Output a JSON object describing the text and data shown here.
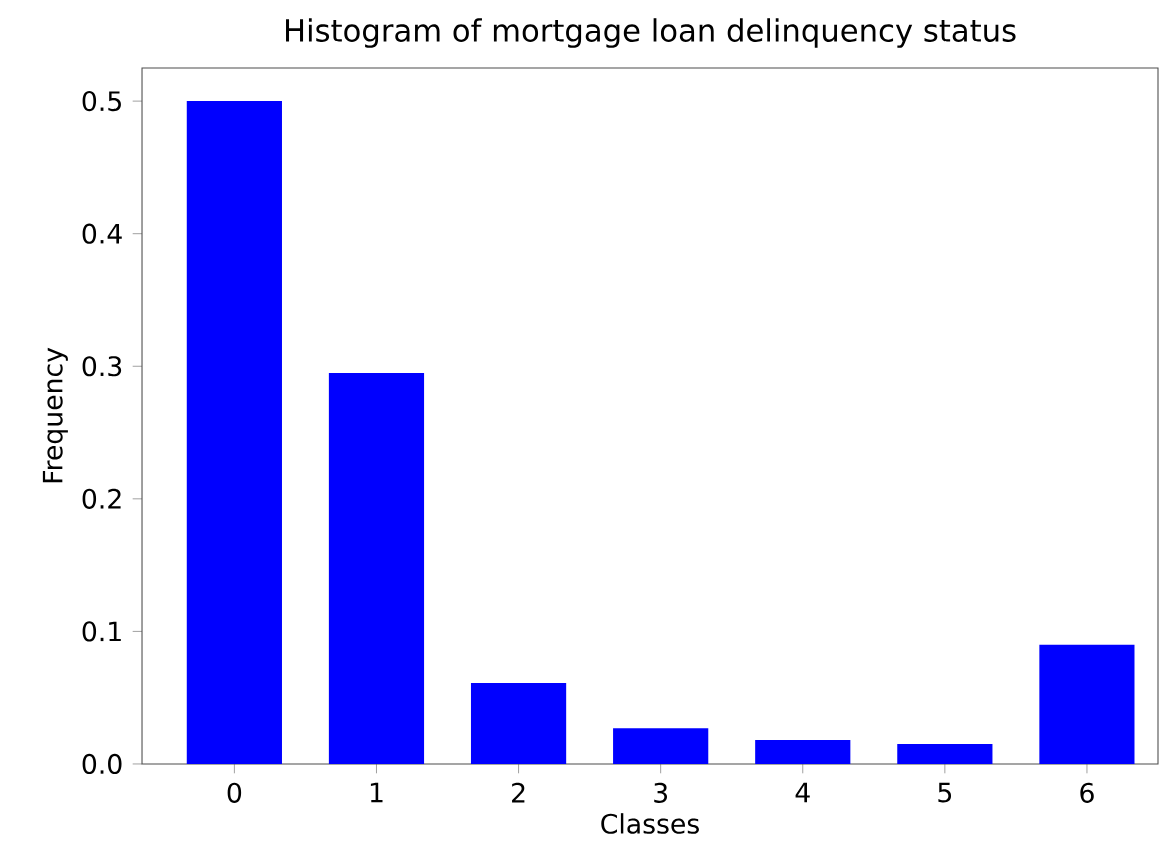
{
  "chart_data": {
    "type": "bar",
    "title": "Histogram of mortgage loan delinquency status",
    "xlabel": "Classes",
    "ylabel": "Frequency",
    "categories": [
      "0",
      "1",
      "2",
      "3",
      "4",
      "5",
      "6"
    ],
    "values": [
      0.5,
      0.295,
      0.061,
      0.027,
      0.018,
      0.015,
      0.09
    ],
    "color": "#0000ff",
    "ylim": [
      0,
      0.525
    ],
    "yticks": [
      {
        "value": 0,
        "label": "0.0"
      },
      0.1,
      0.2,
      0.3,
      0.4,
      0.5
    ]
  }
}
